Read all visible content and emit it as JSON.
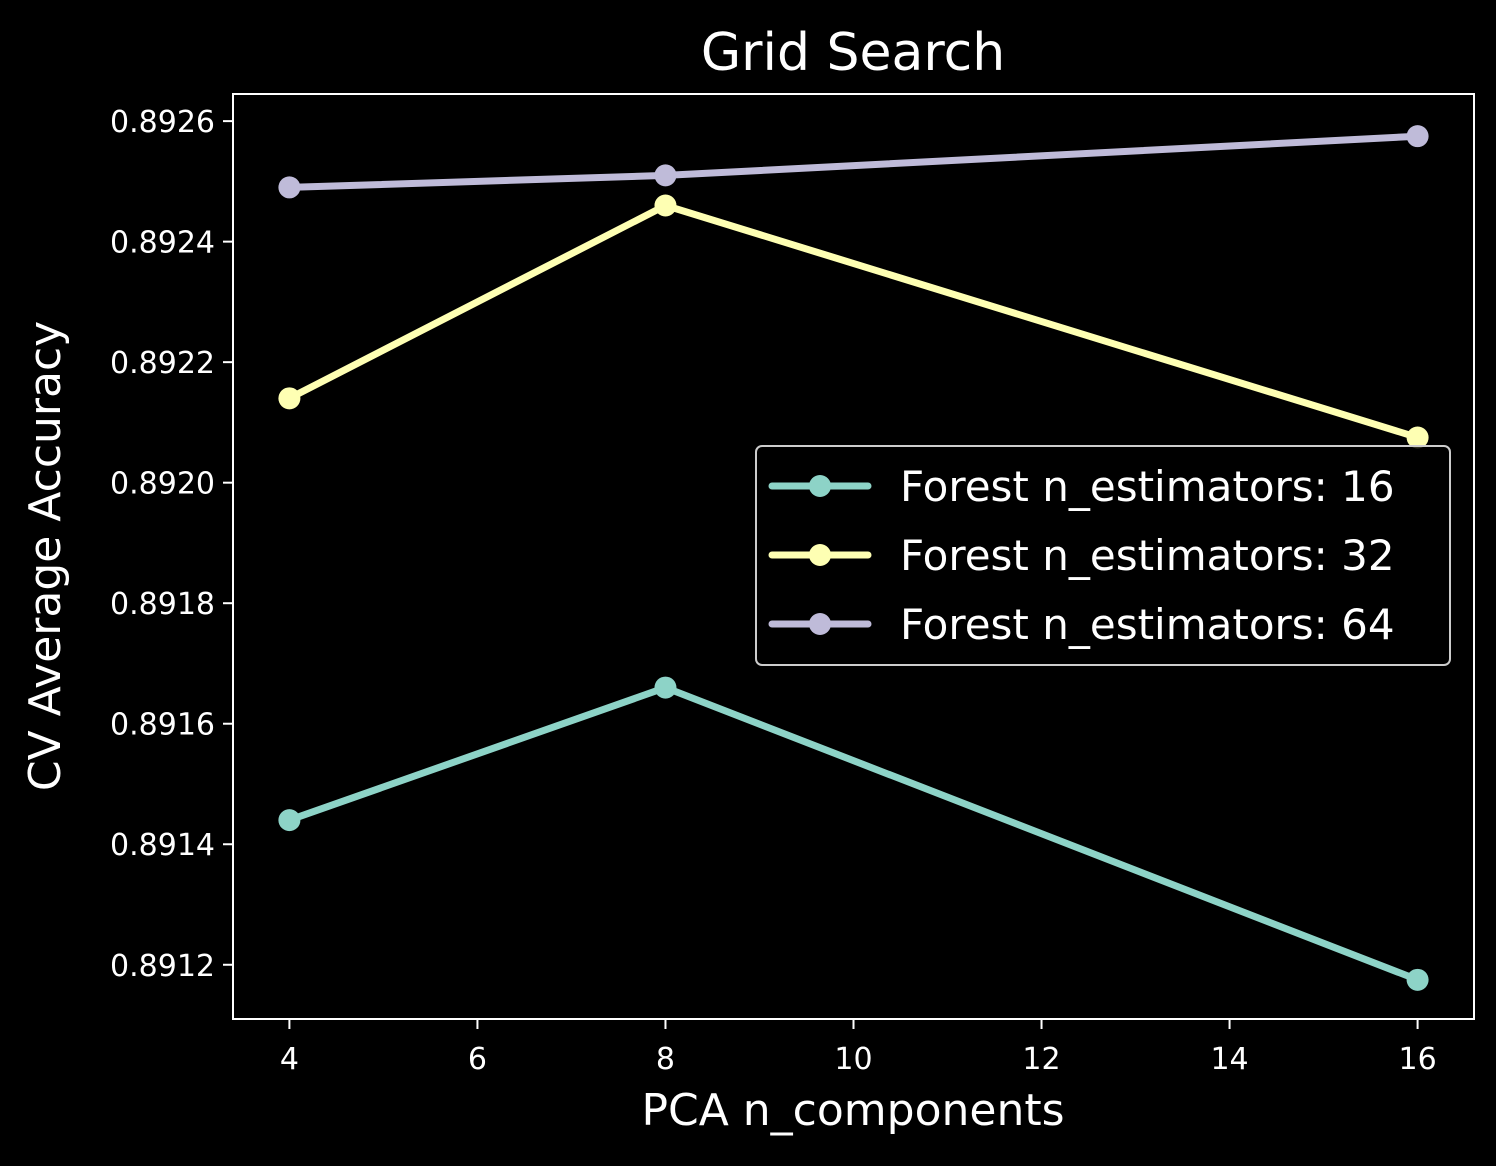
{
  "chart_data": {
    "type": "line",
    "title": "Grid Search",
    "xlabel": "PCA n_components",
    "ylabel": "CV Average Accuracy",
    "x": [
      4,
      8,
      16
    ],
    "xlim": [
      3.4,
      16.6
    ],
    "ylim": [
      0.89111,
      0.892645
    ],
    "xticks": [
      4,
      6,
      8,
      10,
      12,
      14,
      16
    ],
    "xtick_labels": [
      "4",
      "6",
      "8",
      "10",
      "12",
      "14",
      "16"
    ],
    "yticks": [
      0.8912,
      0.8914,
      0.8916,
      0.8918,
      0.892,
      0.8922,
      0.8924,
      0.8926
    ],
    "ytick_labels": [
      "0.8912",
      "0.8914",
      "0.8916",
      "0.8918",
      "0.8920",
      "0.8922",
      "0.8924",
      "0.8926"
    ],
    "grid": false,
    "legend_position": "center-right",
    "series": [
      {
        "name": "Forest n_estimators: 16",
        "color": "#8dd3c7",
        "values": [
          0.89144,
          0.89166,
          0.891175
        ]
      },
      {
        "name": "Forest n_estimators: 32",
        "color": "#feffb3",
        "values": [
          0.89214,
          0.89246,
          0.892075
        ]
      },
      {
        "name": "Forest n_estimators: 64",
        "color": "#bfbbd9",
        "values": [
          0.89249,
          0.89251,
          0.892575
        ]
      }
    ]
  }
}
